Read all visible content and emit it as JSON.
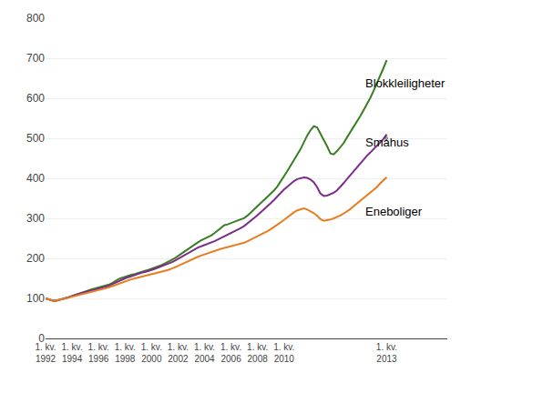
{
  "chart_data": {
    "type": "line",
    "categories": [
      "1. kv.\n1992",
      null,
      null,
      null,
      null,
      null,
      null,
      null,
      "1. kv.\n1994",
      null,
      null,
      null,
      null,
      null,
      null,
      null,
      "1. kv.\n1996",
      null,
      null,
      null,
      null,
      null,
      null,
      null,
      "1. kv.\n1998",
      null,
      null,
      null,
      null,
      null,
      null,
      null,
      "1. kv.\n2000",
      null,
      null,
      null,
      null,
      null,
      null,
      null,
      "1. kv.\n2002",
      null,
      null,
      null,
      null,
      null,
      null,
      null,
      "1. kv.\n2004",
      null,
      null,
      null,
      null,
      null,
      null,
      null,
      "1. kv.\n2006",
      null,
      null,
      null,
      null,
      null,
      null,
      null,
      "1. kv.\n2008",
      null,
      null,
      null,
      null,
      null,
      null,
      null,
      "1. kv.\n2010",
      null,
      null,
      null,
      null,
      null,
      null,
      null,
      null,
      null,
      null,
      null,
      null,
      null,
      null,
      null,
      null,
      null,
      null,
      null,
      null,
      null,
      null,
      null,
      null,
      null,
      null,
      null,
      null,
      null,
      null,
      "1. kv.\n2013"
    ],
    "series": [
      {
        "name": "Blokkleiligheter",
        "color": "#3a7d23",
        "values": [
          100,
          97,
          95,
          94,
          96,
          99,
          101,
          103,
          106,
          109,
          111,
          114,
          117,
          120,
          123,
          125,
          127,
          129,
          131,
          134,
          138,
          143,
          148,
          151,
          154,
          157,
          159,
          161,
          164,
          167,
          169,
          171,
          174,
          177,
          179,
          183,
          187,
          191,
          196,
          200,
          206,
          212,
          218,
          224,
          230,
          236,
          240,
          245,
          249,
          252,
          257,
          263,
          270,
          278,
          283,
          285,
          288,
          291,
          294,
          297,
          301,
          307,
          315,
          322,
          330,
          338,
          345,
          355,
          362,
          370,
          380,
          392,
          405,
          418,
          432,
          445,
          460,
          473,
          490,
          507,
          520,
          530,
          527,
          512,
          498,
          480,
          462,
          460,
          468,
          478,
          488,
          502,
          515,
          527,
          540,
          555,
          570,
          584,
          600,
          618,
          636,
          655,
          675,
          695
        ]
      },
      {
        "name": "Småhus",
        "color": "#7b2d8b",
        "values": [
          100,
          97,
          95,
          94,
          96,
          99,
          101,
          103,
          106,
          109,
          111,
          114,
          116,
          118,
          120,
          122,
          124,
          126,
          128,
          131,
          135,
          139,
          143,
          147,
          150,
          153,
          156,
          158,
          161,
          164,
          166,
          168,
          171,
          174,
          177,
          180,
          183,
          187,
          190,
          194,
          199,
          204,
          209,
          214,
          219,
          223,
          227,
          230,
          233,
          236,
          239,
          243,
          247,
          251,
          255,
          259,
          263,
          267,
          271,
          276,
          281,
          287,
          294,
          301,
          308,
          315,
          322,
          330,
          338,
          346,
          355,
          364,
          372,
          379,
          387,
          393,
          398,
          400,
          402,
          401,
          397,
          390,
          378,
          362,
          356,
          357,
          360,
          364,
          370,
          378,
          388,
          398,
          408,
          418,
          428,
          437,
          447,
          456,
          464,
          472,
          480,
          488,
          498,
          510
        ]
      },
      {
        "name": "Eneboliger",
        "color": "#e87d1e",
        "values": [
          100,
          97,
          95,
          94,
          96,
          99,
          101,
          103,
          105,
          107,
          109,
          111,
          113,
          115,
          117,
          119,
          121,
          123,
          125,
          127,
          130,
          133,
          137,
          140,
          143,
          146,
          148,
          150,
          152,
          154,
          156,
          158,
          160,
          162,
          164,
          166,
          168,
          171,
          174,
          177,
          181,
          185,
          189,
          193,
          197,
          201,
          204,
          207,
          210,
          213,
          216,
          219,
          222,
          224,
          226,
          228,
          230,
          232,
          234,
          236,
          239,
          243,
          247,
          251,
          255,
          259,
          263,
          268,
          273,
          278,
          284,
          290,
          296,
          303,
          310,
          315,
          320,
          323,
          325,
          322,
          318,
          313,
          306,
          298,
          294,
          295,
          297,
          300,
          303,
          307,
          312,
          317,
          323,
          330,
          337,
          344,
          350,
          356,
          363,
          370,
          378,
          387,
          396,
          403
        ]
      }
    ],
    "annotations": [
      {
        "text": "Blokkleiligheter",
        "x": 96,
        "y": 638
      },
      {
        "text": "Småhus",
        "x": 96,
        "y": 490
      },
      {
        "text": "Eneboliger",
        "x": 96,
        "y": 318
      }
    ],
    "ylim": [
      0,
      800
    ],
    "yticks": [
      0,
      100,
      200,
      300,
      400,
      500,
      600,
      700,
      800
    ],
    "grid": true
  }
}
